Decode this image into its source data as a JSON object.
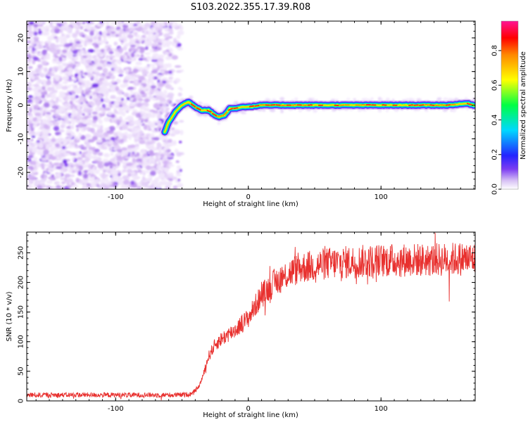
{
  "title": "S103.2022.355.17.39.R08",
  "colors": {
    "snr_line": "#e8302e",
    "noise": "#8a3cff",
    "colorbar": [
      "#ffffff",
      "#d8c2f5",
      "#7b3df2",
      "#2323ff",
      "#00d8ff",
      "#00ff44",
      "#ffff00",
      "#ff8800",
      "#ff0000",
      "#ff1493"
    ]
  },
  "chart_data": [
    {
      "type": "heatmap",
      "xlabel": "Height of straight line (km)",
      "ylabel": "Frequency (Hz)",
      "xlim": [
        -167,
        171
      ],
      "ylim": [
        -25,
        25
      ],
      "xticks": [
        -100,
        0,
        100
      ],
      "yticks": [
        -20,
        -10,
        0,
        10,
        20
      ],
      "colorbar": {
        "label": "Normalized spectral amplitude",
        "range": [
          0,
          0.97
        ],
        "ticks": [
          0.0,
          0.2,
          0.4,
          0.6,
          0.8
        ]
      },
      "noise_region_x": [
        -167,
        -55
      ],
      "ridge": {
        "x": [
          -63,
          -60,
          -55,
          -50,
          -45,
          -40,
          -35,
          -30,
          -25,
          -22,
          -18,
          -14,
          -10,
          -5,
          0,
          5,
          10,
          50,
          100,
          150,
          165,
          170
        ],
        "y": [
          -8,
          -5,
          -2,
          0,
          1,
          -0.5,
          -1.5,
          -1.5,
          -3,
          -3.5,
          -3,
          -1,
          -1,
          -0.5,
          -0.5,
          -0.3,
          0,
          0,
          0,
          0,
          0.5,
          0
        ]
      }
    },
    {
      "type": "line",
      "xlabel": "Height of straight line (km)",
      "ylabel": "SNR (10 * v/v)",
      "xlim": [
        -167,
        171
      ],
      "ylim": [
        0,
        285
      ],
      "xticks": [
        -100,
        0,
        100
      ],
      "yticks": [
        0,
        50,
        100,
        150,
        200,
        250
      ],
      "trend": {
        "x": [
          -167,
          -120,
          -80,
          -50,
          -42,
          -37,
          -33,
          -30,
          -25,
          -20,
          -15,
          -10,
          -5,
          0,
          5,
          10,
          15,
          20,
          30,
          40,
          60,
          80,
          100,
          120,
          140,
          160,
          171
        ],
        "y": [
          10,
          10,
          10,
          10,
          12,
          25,
          50,
          75,
          95,
          105,
          112,
          120,
          130,
          140,
          160,
          178,
          190,
          200,
          215,
          225,
          232,
          235,
          237,
          238,
          238,
          240,
          240
        ]
      },
      "noise_amplitude": 12
    }
  ]
}
